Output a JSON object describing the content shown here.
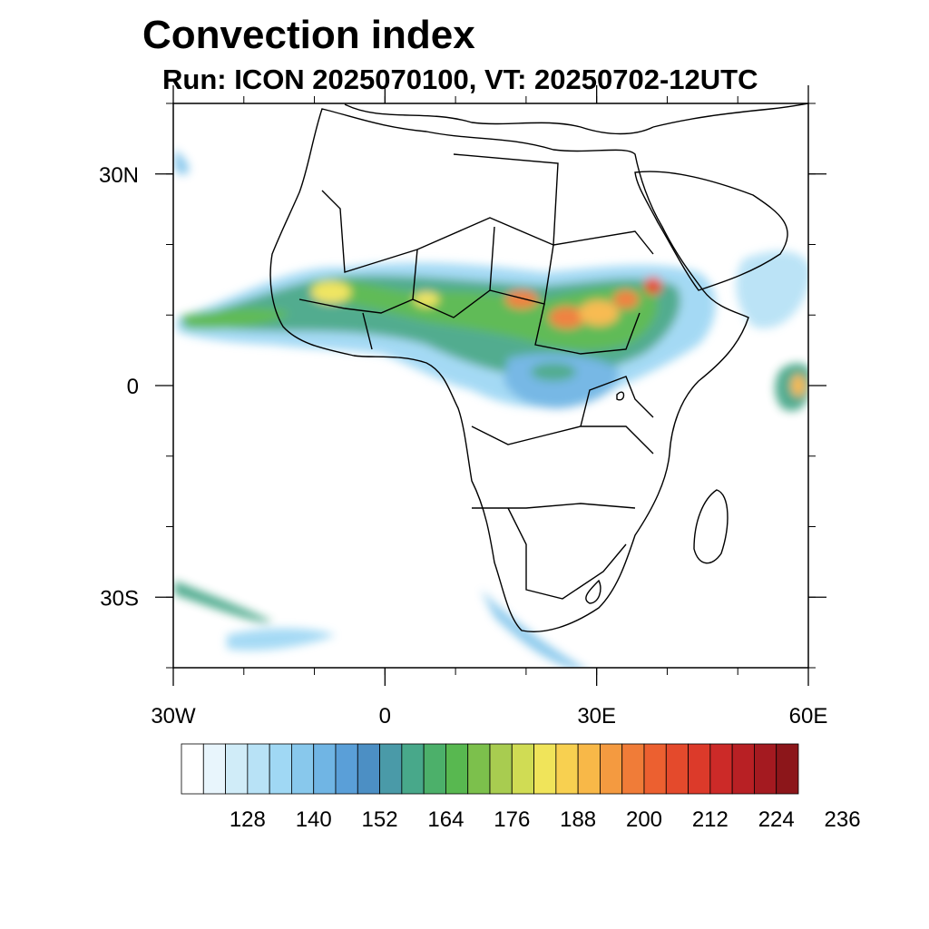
{
  "title": "Convection index",
  "subtitle": "Run: ICON 2025070100,  VT: 20250702-12UTC",
  "map": {
    "lat_range": [
      -40,
      40
    ],
    "lon_range": [
      -30,
      60
    ],
    "lat_ticks": [
      {
        "value": 30,
        "label": "30N"
      },
      {
        "value": 0,
        "label": "0"
      },
      {
        "value": -30,
        "label": "30S"
      }
    ],
    "lon_ticks": [
      {
        "value": -30,
        "label": "30W"
      },
      {
        "value": 0,
        "label": "0"
      },
      {
        "value": 30,
        "label": "30E"
      },
      {
        "value": 60,
        "label": "60E"
      }
    ],
    "minor_tick_step_deg": 10,
    "coastline_color": "#000000"
  },
  "colorbar": {
    "levels": [
      128,
      140,
      152,
      164,
      176,
      188,
      200,
      212,
      224,
      236
    ],
    "colors": [
      "#ffffff",
      "#e8f5fc",
      "#d0ecf8",
      "#b8e2f6",
      "#a0d8f4",
      "#88c8ec",
      "#70b5e4",
      "#5a9fd8",
      "#4c8fc4",
      "#4a9aa8",
      "#48a88a",
      "#4cb06a",
      "#58b850",
      "#7cc04c",
      "#a8cc50",
      "#d0dc54",
      "#f0e45a",
      "#f8d050",
      "#f8b848",
      "#f49a40",
      "#f07c38",
      "#ec6030",
      "#e44a2c",
      "#dc3a2a",
      "#cc2a28",
      "#b82024",
      "#a41a20",
      "#8c161a"
    ]
  }
}
